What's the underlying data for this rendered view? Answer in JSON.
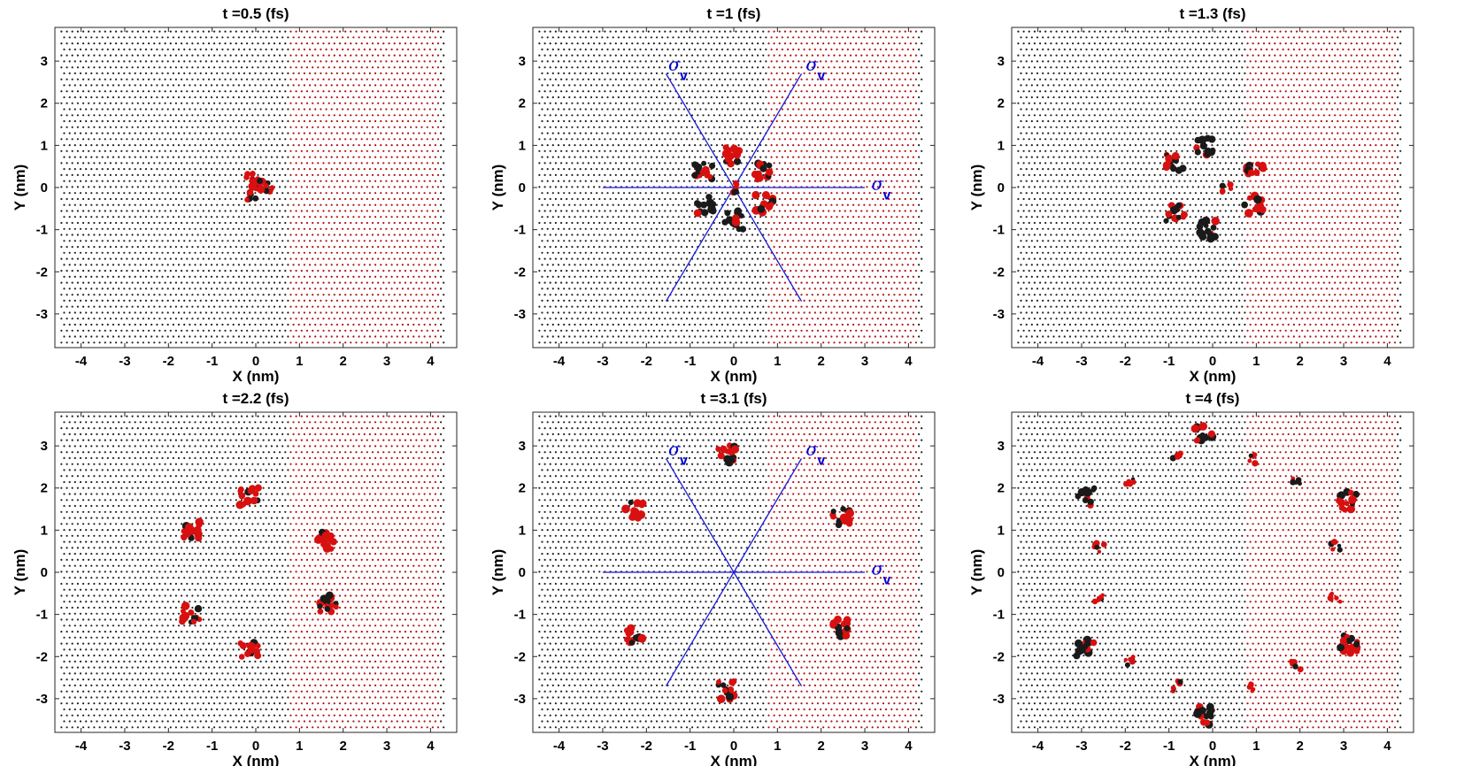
{
  "chart_data": [
    {
      "type": "scatter",
      "title": "t =0.5 (fs)",
      "xlabel": "X (nm)",
      "ylabel": "Y (nm)",
      "xlim": [
        -4.6,
        4.6
      ],
      "ylim": [
        -3.8,
        3.8
      ],
      "xticks": [
        "-4",
        "-3",
        "-2",
        "-1",
        "0",
        "1",
        "2",
        "3",
        "4"
      ],
      "yticks": [
        "3",
        "2",
        "1",
        "0",
        "-1",
        "-2",
        "-3"
      ],
      "symmetry_lines": false,
      "clusters": [
        {
          "x": -0.12,
          "y": 0.25,
          "color": "#d81010",
          "size": "medium"
        },
        {
          "x": -0.12,
          "y": -0.25,
          "color": "#d81010",
          "size": "medium"
        },
        {
          "x": 0.3,
          "y": 0.0,
          "color": "#d81010",
          "size": "medium"
        },
        {
          "x": 0.05,
          "y": 0.0,
          "color": "#d81010",
          "size": "large"
        }
      ]
    },
    {
      "type": "scatter",
      "title": "t =1 (fs)",
      "xlabel": "X (nm)",
      "ylabel": "Y (nm)",
      "xlim": [
        -4.6,
        4.6
      ],
      "ylim": [
        -3.8,
        3.8
      ],
      "xticks": [
        "-4",
        "-3",
        "-2",
        "-1",
        "0",
        "1",
        "2",
        "3",
        "4"
      ],
      "yticks": [
        "3",
        "2",
        "1",
        "0",
        "-1",
        "-2",
        "-3"
      ],
      "symmetry_lines": true,
      "sigma_labels": [
        {
          "symbol": "σ",
          "subscript": "v"
        },
        {
          "symbol": "σ",
          "subscript": "v"
        },
        {
          "symbol": "σ",
          "subscript": "v"
        }
      ],
      "clusters": [
        {
          "x": 0.0,
          "y": 0.78,
          "color": "#d81010",
          "size": "large"
        },
        {
          "x": 0.0,
          "y": -0.78,
          "color": "#1a1a1a",
          "size": "large"
        },
        {
          "x": 0.68,
          "y": 0.39,
          "color": "#d81010",
          "size": "large"
        },
        {
          "x": 0.68,
          "y": -0.39,
          "color": "#d81010",
          "size": "large"
        },
        {
          "x": -0.68,
          "y": 0.39,
          "color": "#1a1a1a",
          "size": "large"
        },
        {
          "x": -0.68,
          "y": -0.39,
          "color": "#1a1a1a",
          "size": "large"
        },
        {
          "x": 0.0,
          "y": 0.0,
          "color": "#d81010",
          "size": "medium"
        }
      ]
    },
    {
      "type": "scatter",
      "title": "t =1.3 (fs)",
      "xlabel": "X (nm)",
      "ylabel": "Y (nm)",
      "xlim": [
        -4.6,
        4.6
      ],
      "ylim": [
        -3.8,
        3.8
      ],
      "xticks": [
        "-4",
        "-3",
        "-2",
        "-1",
        "0",
        "1",
        "2",
        "3",
        "4"
      ],
      "yticks": [
        "3",
        "2",
        "1",
        "0",
        "-1",
        "-2",
        "-3"
      ],
      "symmetry_lines": false,
      "clusters": [
        {
          "x": -0.15,
          "y": 1.0,
          "color": "#1a1a1a",
          "size": "large"
        },
        {
          "x": -0.15,
          "y": -1.0,
          "color": "#1a1a1a",
          "size": "large"
        },
        {
          "x": 0.95,
          "y": 0.4,
          "color": "#d81010",
          "size": "large"
        },
        {
          "x": 0.95,
          "y": -0.4,
          "color": "#d81010",
          "size": "large"
        },
        {
          "x": -0.85,
          "y": 0.6,
          "color": "#1a1a1a",
          "size": "large"
        },
        {
          "x": -0.85,
          "y": -0.6,
          "color": "#1a1a1a",
          "size": "large"
        },
        {
          "x": 0.3,
          "y": 0.0,
          "color": "#d81010",
          "size": "medium"
        }
      ]
    },
    {
      "type": "scatter",
      "title": "t =2.2 (fs)",
      "xlabel": "X (nm)",
      "ylabel": "Y (nm)",
      "xlim": [
        -4.6,
        4.6
      ],
      "ylim": [
        -3.8,
        3.8
      ],
      "xticks": [
        "-4",
        "-3",
        "-2",
        "-1",
        "0",
        "1",
        "2",
        "3",
        "4"
      ],
      "yticks": [
        "3",
        "2",
        "1",
        "0",
        "-1",
        "-2",
        "-3"
      ],
      "symmetry_lines": false,
      "clusters": [
        {
          "x": -0.15,
          "y": 1.8,
          "color": "#d81010",
          "size": "large"
        },
        {
          "x": -0.15,
          "y": -1.8,
          "color": "#d81010",
          "size": "large"
        },
        {
          "x": 1.65,
          "y": 0.75,
          "color": "#d81010",
          "size": "large"
        },
        {
          "x": 1.65,
          "y": -0.75,
          "color": "#d81010",
          "size": "large"
        },
        {
          "x": -1.5,
          "y": 1.0,
          "color": "#d81010",
          "size": "large"
        },
        {
          "x": -1.5,
          "y": -1.0,
          "color": "#d81010",
          "size": "large"
        }
      ]
    },
    {
      "type": "scatter",
      "title": "t =3.1 (fs)",
      "xlabel": "X (nm)",
      "ylabel": "Y (nm)",
      "xlim": [
        -4.6,
        4.6
      ],
      "ylim": [
        -3.8,
        3.8
      ],
      "xticks": [
        "-4",
        "-3",
        "-2",
        "-1",
        "0",
        "1",
        "2",
        "3",
        "4"
      ],
      "yticks": [
        "3",
        "2",
        "1",
        "0",
        "-1",
        "-2",
        "-3"
      ],
      "symmetry_lines": true,
      "sigma_labels": [
        {
          "symbol": "σ",
          "subscript": "v"
        },
        {
          "symbol": "σ",
          "subscript": "v"
        },
        {
          "symbol": "σ",
          "subscript": "v"
        }
      ],
      "clusters": [
        {
          "x": -0.15,
          "y": 2.8,
          "color": "#d81010",
          "size": "large"
        },
        {
          "x": -0.15,
          "y": -2.8,
          "color": "#d81010",
          "size": "large"
        },
        {
          "x": 2.45,
          "y": 1.3,
          "color": "#d81010",
          "size": "large"
        },
        {
          "x": 2.45,
          "y": -1.3,
          "color": "#d81010",
          "size": "large"
        },
        {
          "x": -2.3,
          "y": 1.5,
          "color": "#d81010",
          "size": "large"
        },
        {
          "x": -2.3,
          "y": -1.5,
          "color": "#d81010",
          "size": "large"
        }
      ]
    },
    {
      "type": "scatter",
      "title": "t =4 (fs)",
      "xlabel": "X (nm)",
      "ylabel": "Y (nm)",
      "xlim": [
        -4.6,
        4.6
      ],
      "ylim": [
        -3.8,
        3.8
      ],
      "xticks": [
        "-4",
        "-3",
        "-2",
        "-1",
        "0",
        "1",
        "2",
        "3",
        "4"
      ],
      "yticks": [
        "3",
        "2",
        "1",
        "0",
        "-1",
        "-2",
        "-3"
      ],
      "symmetry_lines": false,
      "clusters": [
        {
          "x": -0.2,
          "y": 3.3,
          "color": "#1a1a1a",
          "size": "large"
        },
        {
          "x": -0.2,
          "y": -3.4,
          "color": "#1a1a1a",
          "size": "large"
        },
        {
          "x": 3.1,
          "y": 1.7,
          "color": "#d81010",
          "size": "large"
        },
        {
          "x": 3.1,
          "y": -1.7,
          "color": "#d81010",
          "size": "large"
        },
        {
          "x": -2.9,
          "y": 1.8,
          "color": "#1a1a1a",
          "size": "large"
        },
        {
          "x": -2.9,
          "y": -1.8,
          "color": "#1a1a1a",
          "size": "large"
        },
        {
          "x": -2.6,
          "y": 0.6,
          "color": "#d81010",
          "size": "medium"
        },
        {
          "x": -2.6,
          "y": -0.6,
          "color": "#d81010",
          "size": "medium"
        },
        {
          "x": 2.8,
          "y": 0.6,
          "color": "#d81010",
          "size": "medium"
        },
        {
          "x": 2.8,
          "y": -0.6,
          "color": "#d81010",
          "size": "medium"
        },
        {
          "x": -1.9,
          "y": 2.1,
          "color": "#d81010",
          "size": "medium"
        },
        {
          "x": -1.9,
          "y": -2.1,
          "color": "#d81010",
          "size": "medium"
        },
        {
          "x": 1.9,
          "y": 2.2,
          "color": "#d81010",
          "size": "medium"
        },
        {
          "x": 1.9,
          "y": -2.2,
          "color": "#d81010",
          "size": "medium"
        },
        {
          "x": 0.9,
          "y": 2.7,
          "color": "#d81010",
          "size": "medium"
        },
        {
          "x": 0.9,
          "y": -2.7,
          "color": "#d81010",
          "size": "medium"
        },
        {
          "x": -0.8,
          "y": 2.7,
          "color": "#d81010",
          "size": "medium"
        },
        {
          "x": -0.8,
          "y": -2.7,
          "color": "#d81010",
          "size": "medium"
        }
      ]
    }
  ]
}
